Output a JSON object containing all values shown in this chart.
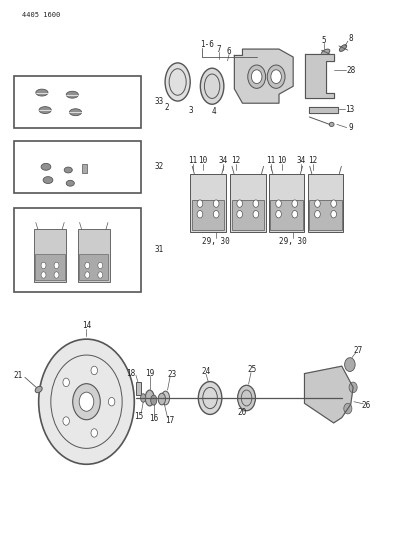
{
  "title": "",
  "part_number_text": "4405 1600",
  "bg_color": "#ffffff",
  "line_color": "#555555",
  "text_color": "#222222",
  "fig_width": 4.08,
  "fig_height": 5.33,
  "dpi": 100
}
